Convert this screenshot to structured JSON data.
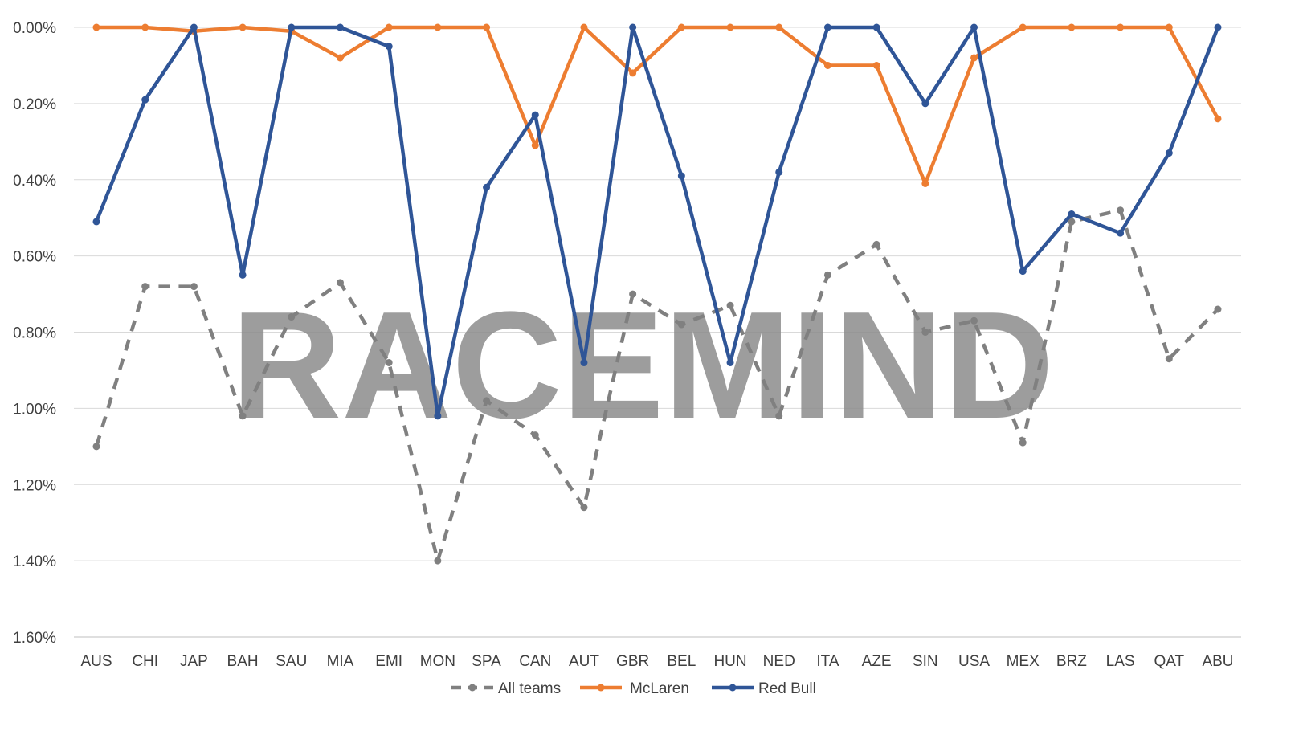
{
  "watermark": "RACEMIND",
  "chart_data": {
    "type": "line",
    "title": "",
    "xlabel": "",
    "ylabel": "",
    "y_reversed": true,
    "ylim": [
      0,
      1.6
    ],
    "y_ticks": [
      {
        "value": 0.0,
        "label": "0.00%"
      },
      {
        "value": 0.2,
        "label": "0.20%"
      },
      {
        "value": 0.4,
        "label": "0.40%"
      },
      {
        "value": 0.6,
        "label": "0.60%"
      },
      {
        "value": 0.8,
        "label": "0.80%"
      },
      {
        "value": 1.0,
        "label": "1.00%"
      },
      {
        "value": 1.2,
        "label": "1.20%"
      },
      {
        "value": 1.4,
        "label": "1.40%"
      },
      {
        "value": 1.6,
        "label": "1.60%"
      }
    ],
    "grid": true,
    "legend_position": "bottom",
    "categories": [
      "AUS",
      "CHI",
      "JAP",
      "BAH",
      "SAU",
      "MIA",
      "EMI",
      "MON",
      "SPA",
      "CAN",
      "AUT",
      "GBR",
      "BEL",
      "HUN",
      "NED",
      "ITA",
      "AZE",
      "SIN",
      "USA",
      "MEX",
      "BRZ",
      "LAS",
      "QAT",
      "ABU"
    ],
    "series": [
      {
        "name": "All teams",
        "color": "#808080",
        "dashed": true,
        "values": [
          1.1,
          0.68,
          0.68,
          1.02,
          0.76,
          0.67,
          0.88,
          1.4,
          0.98,
          1.07,
          1.26,
          0.7,
          0.78,
          0.73,
          1.02,
          0.65,
          0.57,
          0.8,
          0.77,
          1.09,
          0.51,
          0.48,
          0.87,
          0.74
        ]
      },
      {
        "name": "McLaren",
        "color": "#ED7D31",
        "dashed": false,
        "values": [
          0.0,
          0.0,
          0.01,
          0.0,
          0.01,
          0.08,
          0.0,
          0.0,
          0.0,
          0.31,
          0.0,
          0.12,
          0.0,
          0.0,
          0.0,
          0.1,
          0.1,
          0.41,
          0.08,
          0.0,
          0.0,
          0.0,
          0.0,
          0.24
        ]
      },
      {
        "name": "Red Bull",
        "color": "#2F5597",
        "dashed": false,
        "values": [
          0.51,
          0.19,
          0.0,
          0.65,
          0.0,
          0.0,
          0.05,
          1.02,
          0.42,
          0.23,
          0.88,
          0.0,
          0.39,
          0.88,
          0.38,
          0.0,
          0.0,
          0.2,
          0.0,
          0.64,
          0.49,
          0.54,
          0.33,
          0.0
        ]
      }
    ]
  }
}
